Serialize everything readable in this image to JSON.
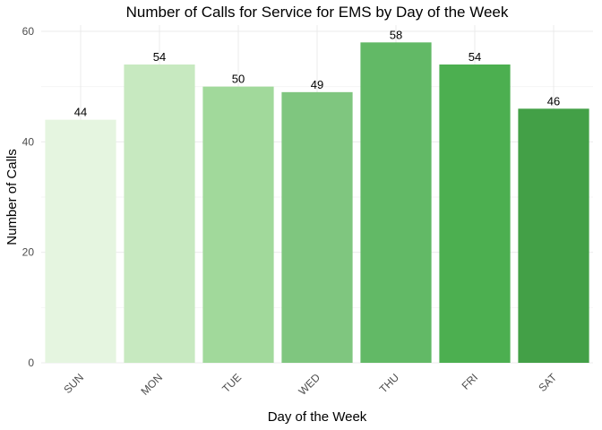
{
  "chart_data": {
    "type": "bar",
    "title": "Number of Calls for Service for EMS by Day of the Week",
    "xlabel": "Day of the Week",
    "ylabel": "Number of Calls",
    "categories": [
      "SUN",
      "MON",
      "TUE",
      "WED",
      "THU",
      "FRI",
      "SAT"
    ],
    "values": [
      44,
      54,
      50,
      49,
      58,
      54,
      46
    ],
    "colors": [
      "#e5f5e0",
      "#c7e9c0",
      "#a1d99b",
      "#7fc67f",
      "#62b966",
      "#4caf50",
      "#43a047"
    ],
    "ylim": [
      0,
      60
    ],
    "yticks": [
      0,
      20,
      40,
      60
    ],
    "grid": true,
    "legend": "none"
  }
}
